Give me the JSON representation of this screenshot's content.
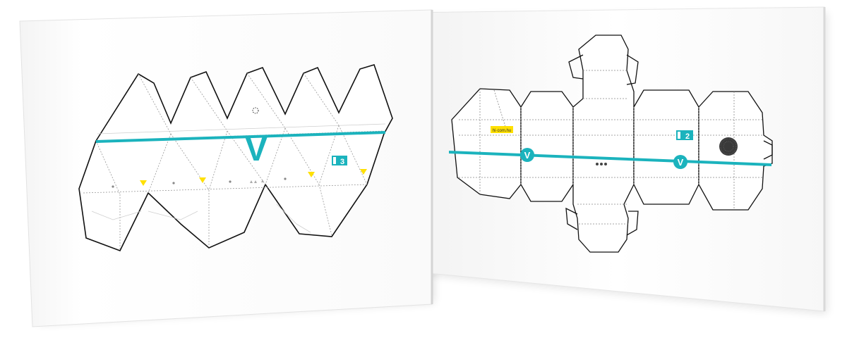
{
  "accent_color": "#1bb3bd",
  "highlight_color": "#ffe000",
  "left_card": {
    "version_badge": "3",
    "big_mark": "V"
  },
  "right_card": {
    "version_badge": "2",
    "logo_mark_1": "V",
    "logo_mark_2": "V",
    "sticker_text": "hi·com.hu"
  }
}
